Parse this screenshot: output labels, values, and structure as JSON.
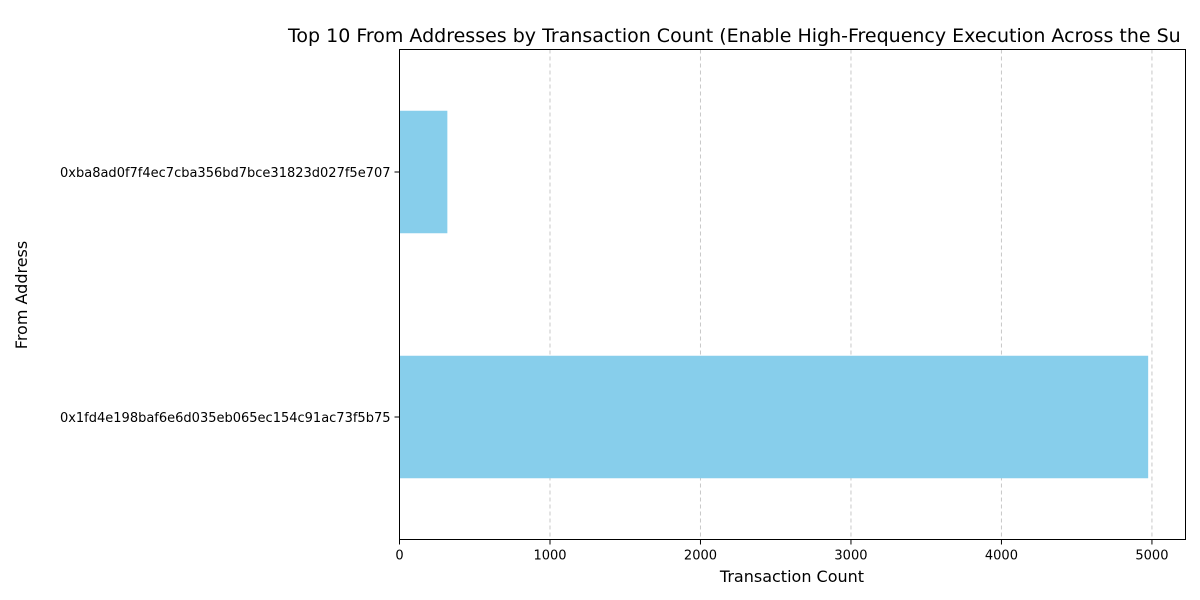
{
  "chart_data": {
    "type": "bar",
    "orientation": "horizontal",
    "title": "Top 10 From Addresses by Transaction Count (Enable High-Frequency Execution Across the Su",
    "xlabel": "Transaction Count",
    "ylabel": "From Address",
    "categories": [
      "0x1fd4e198baf6e6d035eb065ec154c91ac73f5b75",
      "0xba8ad0f7f4ec7cba356bd7bce31823d027f5e707"
    ],
    "values": [
      4975,
      318
    ],
    "xlim": [
      0,
      5223
    ],
    "xticks": [
      "0",
      "1000",
      "2000",
      "3000",
      "4000",
      "5000"
    ],
    "grid": "x-dashed",
    "bar_color": "#87ceeb"
  }
}
